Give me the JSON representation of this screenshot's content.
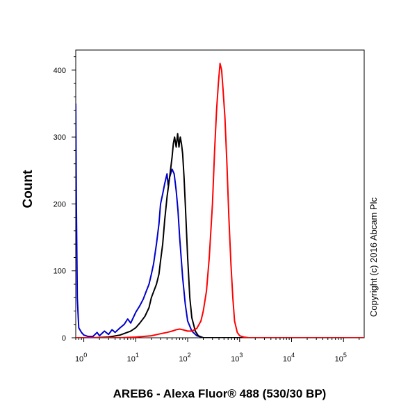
{
  "chart_data": {
    "type": "line",
    "xlabel": "AREB6 - Alexa Fluor® 488 (530/30 BP)",
    "ylabel": "Count",
    "x_scale": "log",
    "xlim": [
      0.7,
      250000
    ],
    "ylim": [
      0,
      430
    ],
    "x_ticks": [
      {
        "value": 1,
        "base": "10",
        "exp": "0"
      },
      {
        "value": 10,
        "base": "10",
        "exp": "1"
      },
      {
        "value": 100,
        "base": "10",
        "exp": "2"
      },
      {
        "value": 1000,
        "base": "10",
        "exp": "3"
      },
      {
        "value": 10000,
        "base": "10",
        "exp": "4"
      },
      {
        "value": 100000,
        "base": "10",
        "exp": "5"
      }
    ],
    "y_ticks": [
      0,
      100,
      200,
      300,
      400
    ],
    "grid": false,
    "legend": "none",
    "series": [
      {
        "color": "#0000cc",
        "points": [
          [
            0.7,
            350
          ],
          [
            0.72,
            200
          ],
          [
            0.75,
            60
          ],
          [
            0.8,
            15
          ],
          [
            0.9,
            8
          ],
          [
            1.0,
            4
          ],
          [
            1.2,
            2
          ],
          [
            1.5,
            2
          ],
          [
            1.8,
            8
          ],
          [
            2.0,
            3
          ],
          [
            2.5,
            10
          ],
          [
            3,
            5
          ],
          [
            3.5,
            12
          ],
          [
            4,
            8
          ],
          [
            5,
            15
          ],
          [
            6,
            20
          ],
          [
            7,
            28
          ],
          [
            8,
            22
          ],
          [
            10,
            38
          ],
          [
            12,
            48
          ],
          [
            14,
            58
          ],
          [
            16,
            70
          ],
          [
            18,
            80
          ],
          [
            20,
            95
          ],
          [
            22,
            110
          ],
          [
            25,
            140
          ],
          [
            28,
            170
          ],
          [
            30,
            200
          ],
          [
            33,
            215
          ],
          [
            36,
            230
          ],
          [
            40,
            245
          ],
          [
            42,
            228
          ],
          [
            45,
            240
          ],
          [
            50,
            252
          ],
          [
            55,
            245
          ],
          [
            60,
            220
          ],
          [
            65,
            190
          ],
          [
            70,
            150
          ],
          [
            80,
            90
          ],
          [
            90,
            50
          ],
          [
            100,
            25
          ],
          [
            120,
            10
          ],
          [
            150,
            3
          ],
          [
            200,
            0
          ],
          [
            250000,
            0
          ]
        ]
      },
      {
        "color": "#000000",
        "points": [
          [
            0.7,
            0
          ],
          [
            1.5,
            0
          ],
          [
            3,
            1
          ],
          [
            5,
            4
          ],
          [
            8,
            10
          ],
          [
            10,
            15
          ],
          [
            12,
            22
          ],
          [
            15,
            32
          ],
          [
            18,
            45
          ],
          [
            20,
            60
          ],
          [
            25,
            80
          ],
          [
            28,
            95
          ],
          [
            30,
            115
          ],
          [
            33,
            140
          ],
          [
            36,
            175
          ],
          [
            40,
            210
          ],
          [
            45,
            240
          ],
          [
            50,
            270
          ],
          [
            53,
            290
          ],
          [
            56,
            300
          ],
          [
            60,
            285
          ],
          [
            64,
            305
          ],
          [
            68,
            285
          ],
          [
            72,
            300
          ],
          [
            76,
            290
          ],
          [
            80,
            275
          ],
          [
            85,
            240
          ],
          [
            90,
            200
          ],
          [
            100,
            120
          ],
          [
            110,
            60
          ],
          [
            120,
            30
          ],
          [
            140,
            10
          ],
          [
            160,
            3
          ],
          [
            200,
            0
          ],
          [
            250000,
            0
          ]
        ]
      },
      {
        "color": "#ff0000",
        "points": [
          [
            0.7,
            0
          ],
          [
            5,
            0
          ],
          [
            10,
            1
          ],
          [
            20,
            3
          ],
          [
            30,
            6
          ],
          [
            40,
            8
          ],
          [
            50,
            10
          ],
          [
            60,
            12
          ],
          [
            70,
            13
          ],
          [
            80,
            12
          ],
          [
            100,
            10
          ],
          [
            120,
            10
          ],
          [
            150,
            14
          ],
          [
            180,
            25
          ],
          [
            200,
            40
          ],
          [
            230,
            70
          ],
          [
            260,
            120
          ],
          [
            300,
            200
          ],
          [
            330,
            280
          ],
          [
            360,
            340
          ],
          [
            390,
            380
          ],
          [
            420,
            410
          ],
          [
            450,
            400
          ],
          [
            480,
            370
          ],
          [
            520,
            330
          ],
          [
            570,
            260
          ],
          [
            620,
            180
          ],
          [
            680,
            110
          ],
          [
            740,
            60
          ],
          [
            800,
            25
          ],
          [
            900,
            8
          ],
          [
            1000,
            3
          ],
          [
            1200,
            1
          ],
          [
            1500,
            0
          ],
          [
            250000,
            0
          ]
        ]
      }
    ]
  },
  "copyright": "Copyright (c) 2016 Abcam Plc"
}
